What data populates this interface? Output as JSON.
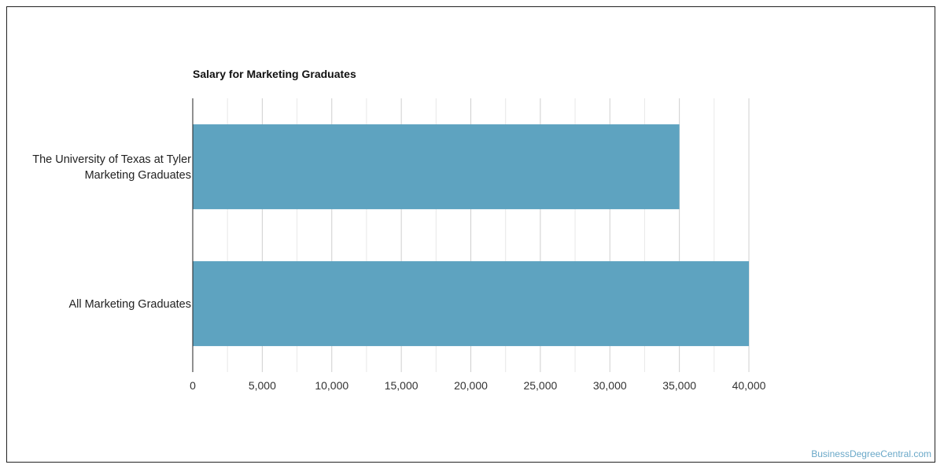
{
  "watermark": "BusinessDegreeCentral.com",
  "chart_data": {
    "type": "bar",
    "orientation": "horizontal",
    "title": "Salary for Marketing Graduates",
    "categories": [
      [
        "The University of Texas at Tyler",
        "Marketing Graduates"
      ],
      [
        "All Marketing Graduates"
      ]
    ],
    "values": [
      35000,
      40000
    ],
    "xlim": [
      0,
      40000
    ],
    "x_ticks": [
      0,
      5000,
      10000,
      15000,
      20000,
      25000,
      30000,
      35000,
      40000
    ],
    "x_tick_labels": [
      "0",
      "5,000",
      "10,000",
      "15,000",
      "20,000",
      "25,000",
      "30,000",
      "35,000",
      "40,000"
    ],
    "grid": true,
    "bar_color": "#5ea3c0"
  }
}
